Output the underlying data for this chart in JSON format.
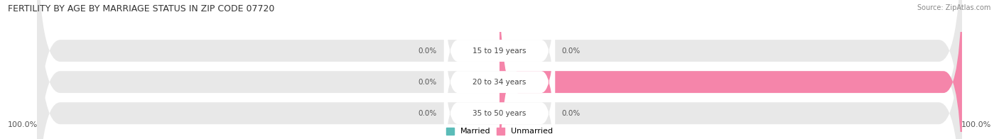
{
  "title": "FERTILITY BY AGE BY MARRIAGE STATUS IN ZIP CODE 07720",
  "source": "Source: ZipAtlas.com",
  "categories": [
    "15 to 19 years",
    "20 to 34 years",
    "35 to 50 years"
  ],
  "married_values": [
    0.0,
    0.0,
    0.0
  ],
  "unmarried_values": [
    0.0,
    100.0,
    0.0
  ],
  "married_color": "#5bbcb8",
  "unmarried_color": "#f585aa",
  "bg_bar_color": "#e8e8e8",
  "title_fontsize": 9,
  "source_fontsize": 7,
  "label_fontsize": 7.5,
  "tick_fontsize": 8,
  "legend_fontsize": 8,
  "x_left_label": "100.0%",
  "x_right_label": "100.0%",
  "figsize": [
    14.06,
    1.96
  ],
  "dpi": 100
}
